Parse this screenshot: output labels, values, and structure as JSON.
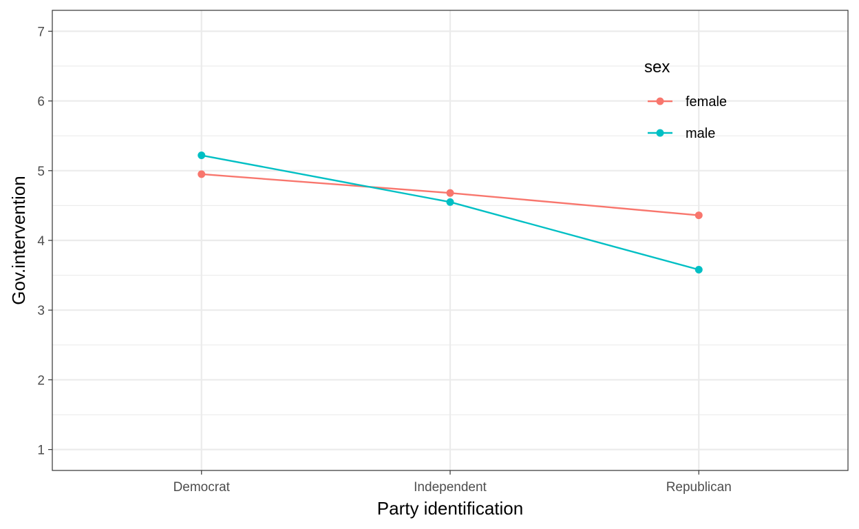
{
  "chart_data": {
    "type": "line",
    "categories": [
      "Democrat",
      "Independent",
      "Republican"
    ],
    "xlabel": "Party identification",
    "ylabel": "Gov.intervention",
    "ylim": [
      0.7,
      7.3
    ],
    "yticks": [
      1,
      2,
      3,
      4,
      5,
      6,
      7
    ],
    "grid": true,
    "legend": {
      "title": "sex",
      "placement": "top-right-inside"
    },
    "series": [
      {
        "name": "female",
        "color": "#F8766D",
        "values": [
          4.95,
          4.68,
          4.36
        ]
      },
      {
        "name": "male",
        "color": "#00BFC4",
        "values": [
          5.22,
          4.55,
          3.58
        ]
      }
    ]
  }
}
